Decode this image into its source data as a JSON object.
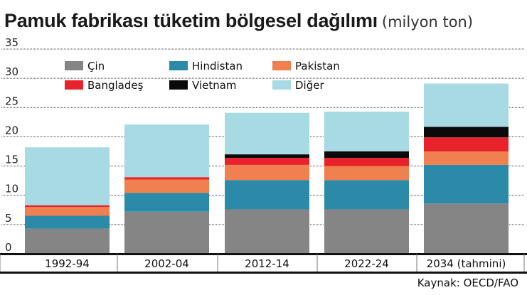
{
  "title": "Pamuk  fabrikası tüketim bölgesel dağılımı",
  "subtitle": "(milyon ton)",
  "source": "Kaynak: OECD/FAO",
  "colors": {
    "Çin": "#858585",
    "Hindistan": "#2a8aa8",
    "Pakistan": "#f08050",
    "Bangladeş": "#e8222b",
    "Vietnam": "#0a0a0a",
    "Diğer": "#a7dae2"
  },
  "chart_data": {
    "type": "bar",
    "stacked": true,
    "categories": [
      "1992-94",
      "2002-04",
      "2012-14",
      "2022-24",
      "2034 (tahmini)"
    ],
    "series": [
      {
        "name": "Çin",
        "values": [
          4.3,
          7.2,
          7.6,
          7.6,
          8.6
        ]
      },
      {
        "name": "Hindistan",
        "values": [
          2.2,
          3.2,
          5.0,
          5.0,
          6.6
        ]
      },
      {
        "name": "Pakistan",
        "values": [
          1.5,
          2.3,
          2.6,
          2.4,
          2.3
        ]
      },
      {
        "name": "Bangladeş",
        "values": [
          0.3,
          0.4,
          1.2,
          1.4,
          2.4
        ]
      },
      {
        "name": "Vietnam",
        "values": [
          0.0,
          0.0,
          0.6,
          1.1,
          1.8
        ]
      },
      {
        "name": "Diğer",
        "values": [
          9.9,
          9.0,
          7.1,
          6.8,
          7.4
        ]
      }
    ],
    "ylim": [
      0,
      35
    ],
    "yticks": [
      "0",
      "5",
      "10",
      "15",
      "20",
      "25",
      "30",
      "35"
    ],
    "grid": true,
    "legend_position": "top-left"
  }
}
